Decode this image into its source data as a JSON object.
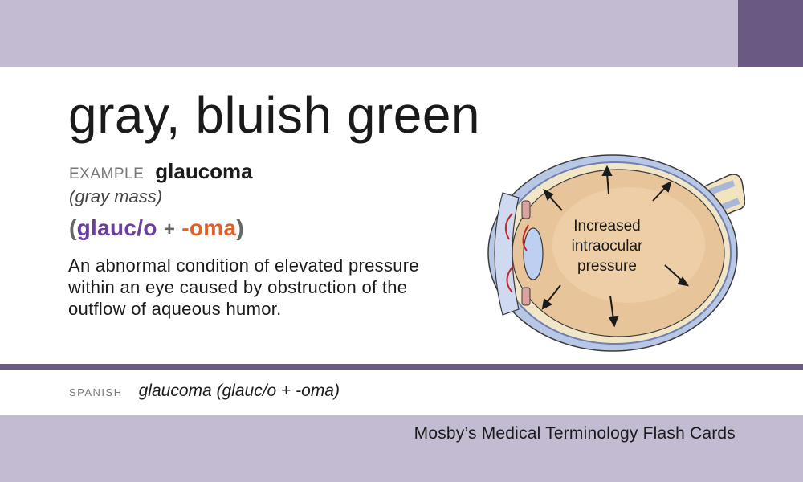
{
  "card": {
    "term": "gray, bluish green",
    "example_label": "EXAMPLE",
    "example_word": "glaucoma",
    "literal_meaning": "(gray mass)",
    "word_parts": {
      "open": "(",
      "part1": "glauc/o",
      "plus": "+",
      "part2": "-oma",
      "close": ")"
    },
    "definition": "An abnormal condition of elevated pressure within an eye caused by obstruction of the outflow of aqueous humor.",
    "spanish_label": "SPANISH",
    "spanish_text": "glaucoma (glauc/o + -oma)",
    "publisher": "Mosby’s Medical Terminology Flash Cards"
  },
  "illustration": {
    "icon": "eye-cross-section-icon",
    "label_lines": [
      "Increased",
      "intraocular",
      "pressure"
    ]
  },
  "colors": {
    "band": "#c2bbd2",
    "accent": "#6a5a83",
    "part1": "#6b3fa0",
    "part2": "#e0602a"
  }
}
